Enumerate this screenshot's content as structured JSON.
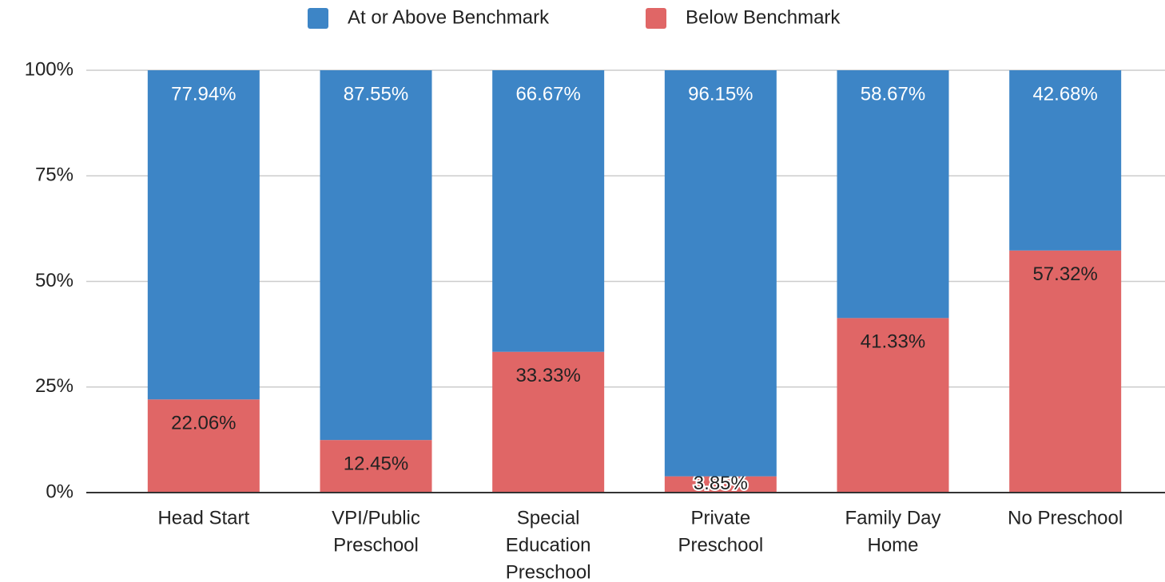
{
  "chart_data": {
    "type": "stacked_bar",
    "categories": [
      [
        "Head Start"
      ],
      [
        "VPI/Public",
        "Preschool"
      ],
      [
        "Special",
        "Education",
        "Preschool"
      ],
      [
        "Private",
        "Preschool"
      ],
      [
        "Family Day",
        "Home"
      ],
      [
        "No Preschool"
      ]
    ],
    "series": [
      {
        "name": "At or Above Benchmark",
        "color": "#3d85c6",
        "values": [
          77.94,
          87.55,
          66.67,
          96.15,
          58.67,
          42.68
        ],
        "value_labels": [
          "77.94%",
          "87.55%",
          "66.67%",
          "96.15%",
          "58.67%",
          "42.68%"
        ]
      },
      {
        "name": "Below Benchmark",
        "color": "#e06666",
        "values": [
          22.06,
          12.45,
          33.33,
          3.85,
          41.33,
          57.32
        ],
        "value_labels": [
          "22.06%",
          "12.45%",
          "33.33%",
          "3.85%",
          "41.33%",
          "57.32%"
        ]
      }
    ],
    "ylim": [
      0,
      100
    ],
    "yticks": [
      {
        "value": 0,
        "label": "0%"
      },
      {
        "value": 25,
        "label": "25%"
      },
      {
        "value": 50,
        "label": "50%"
      },
      {
        "value": 75,
        "label": "75%"
      },
      {
        "value": 100,
        "label": "100%"
      }
    ],
    "grid": true,
    "legend": "top"
  }
}
